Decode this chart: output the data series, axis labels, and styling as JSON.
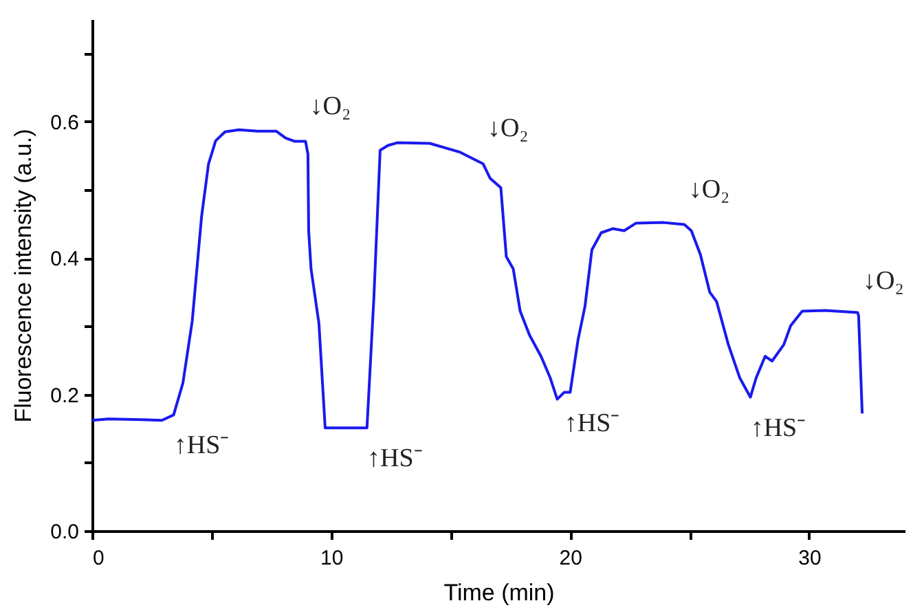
{
  "chart_data": {
    "type": "line",
    "xlabel": "Time (min)",
    "ylabel": "Fluorescence intensity (a.u.)",
    "xlim": [
      0,
      34
    ],
    "ylim": [
      0,
      0.75
    ],
    "xticks": [
      0,
      {
        "value": 5,
        "label": null
      },
      10,
      {
        "value": 15,
        "label": null
      },
      20,
      {
        "value": 25,
        "label": null
      },
      30
    ],
    "yticks": [
      {
        "value": 0,
        "label": "0.0"
      },
      {
        "value": 0.1,
        "label": null
      },
      0.2,
      {
        "value": 0.3,
        "label": null
      },
      0.4,
      {
        "value": 0.5,
        "label": null
      },
      0.6,
      {
        "value": 0.7,
        "label": null
      }
    ],
    "grid": false,
    "marker": "none",
    "line_style": "solid",
    "series": [
      {
        "color": "#1a1aee",
        "x": [
          0,
          0.68,
          2.05,
          2.92,
          3.41,
          3.8,
          4.19,
          4.58,
          4.87,
          5.17,
          5.56,
          6.14,
          6.92,
          7.7,
          8.09,
          8.48,
          8.93,
          9.03,
          9.06,
          9.16,
          9.49,
          9.75,
          11.5,
          11.79,
          12.05,
          12.38,
          12.77,
          14.13,
          15.4,
          16.36,
          16.65,
          17.1,
          17.33,
          17.62,
          17.91,
          18.3,
          18.78,
          19.17,
          19.46,
          19.75,
          20.0,
          20.33,
          20.62,
          20.91,
          21.3,
          21.78,
          22.26,
          22.75,
          23.91,
          24.78,
          25.07,
          25.45,
          25.84,
          26.13,
          26.62,
          27.1,
          27.54,
          27.78,
          28.16,
          28.45,
          28.94,
          29.23,
          29.71,
          30.68,
          32.03,
          32.07,
          32.22
        ],
        "values": [
          0.162,
          0.164,
          0.163,
          0.162,
          0.17,
          0.217,
          0.308,
          0.461,
          0.538,
          0.572,
          0.585,
          0.588,
          0.586,
          0.586,
          0.576,
          0.571,
          0.571,
          0.552,
          0.44,
          0.384,
          0.304,
          0.151,
          0.151,
          0.343,
          0.558,
          0.565,
          0.569,
          0.568,
          0.555,
          0.538,
          0.517,
          0.503,
          0.402,
          0.384,
          0.322,
          0.287,
          0.256,
          0.224,
          0.193,
          0.203,
          0.203,
          0.28,
          0.329,
          0.412,
          0.437,
          0.443,
          0.44,
          0.451,
          0.452,
          0.449,
          0.44,
          0.405,
          0.35,
          0.336,
          0.273,
          0.224,
          0.196,
          0.224,
          0.256,
          0.249,
          0.273,
          0.301,
          0.322,
          0.323,
          0.32,
          0.315,
          0.172
        ]
      }
    ],
    "annotations": [
      {
        "text": "↑HS⁻",
        "x": 3.41,
        "y": 0.17
      },
      {
        "text": "↓O₂",
        "x": 8.93,
        "y": 0.571
      },
      {
        "text": "↑HS⁻",
        "x": 11.5,
        "y": 0.151
      },
      {
        "text": "↓O₂",
        "x": 16.36,
        "y": 0.538
      },
      {
        "text": "↑HS⁻",
        "x": 19.75,
        "y": 0.203
      },
      {
        "text": "↓O₂",
        "x": 24.78,
        "y": 0.449
      },
      {
        "text": "↑HS⁻",
        "x": 27.54,
        "y": 0.196
      },
      {
        "text": "↓O₂",
        "x": 32.07,
        "y": 0.315
      }
    ]
  }
}
